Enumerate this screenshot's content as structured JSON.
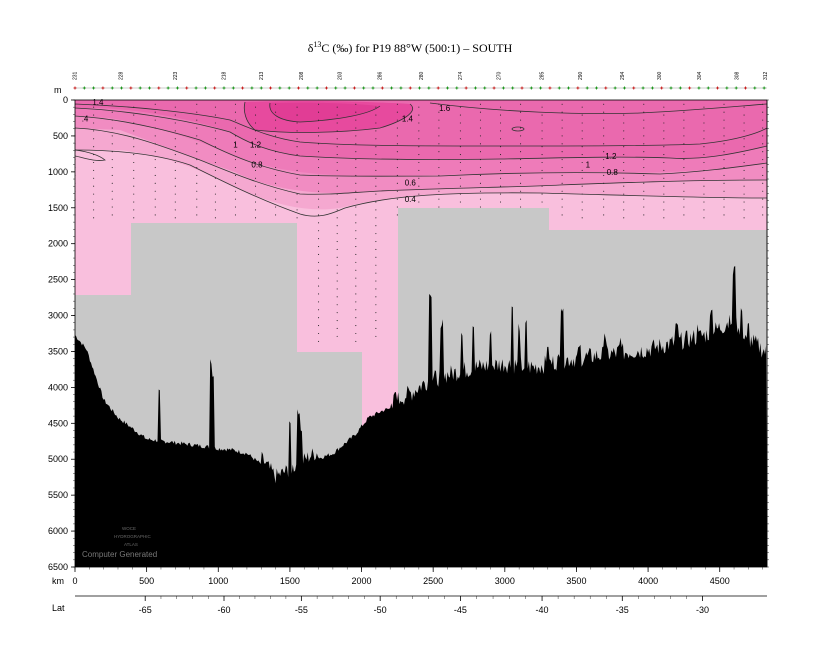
{
  "chart_data": {
    "type": "contour-section",
    "title_parts": {
      "pre": "δ",
      "sup": "13",
      "post": "C (‰) for P19 88°W (500:1) – SOUTH"
    },
    "y_unit_label": "m",
    "x_unit_label": "km",
    "lat_label": "Lat",
    "watermark": {
      "line1": "WOCE",
      "line2": "HYDROGRAPHIC",
      "line3": "ATLAS",
      "line4": "Computer Generated"
    },
    "depth_ticks": [
      0,
      500,
      1000,
      1500,
      2000,
      2500,
      3000,
      3500,
      4000,
      4500,
      5000,
      5500,
      6000,
      6500
    ],
    "ylim": [
      0,
      6500
    ],
    "km_ticks": [
      0,
      500,
      1000,
      1500,
      2000,
      2500,
      3000,
      3500,
      4000,
      4500
    ],
    "xlim": [
      0,
      4830
    ],
    "lat_ticks": [
      {
        "label": "-65",
        "km": 490
      },
      {
        "label": "-60",
        "km": 1040
      },
      {
        "label": "-55",
        "km": 1580
      },
      {
        "label": "-50",
        "km": 2130
      },
      {
        "label": "-45",
        "km": 2690
      },
      {
        "label": "-40",
        "km": 3260
      },
      {
        "label": "-35",
        "km": 3820
      },
      {
        "label": "-30",
        "km": 4380
      }
    ],
    "station_labels": [
      {
        "label": "231",
        "km": 0
      },
      {
        "label": "228",
        "km": 320
      },
      {
        "label": "223",
        "km": 700
      },
      {
        "label": "218",
        "km": 1040
      },
      {
        "label": "213",
        "km": 1300
      },
      {
        "label": "208",
        "km": 1580
      },
      {
        "label": "203",
        "km": 1850
      },
      {
        "label": "286",
        "km": 2130
      },
      {
        "label": "280",
        "km": 2420
      },
      {
        "label": "274",
        "km": 2690
      },
      {
        "label": "270",
        "km": 2960
      },
      {
        "label": "285",
        "km": 3260
      },
      {
        "label": "290",
        "km": 3530
      },
      {
        "label": "294",
        "km": 3820
      },
      {
        "label": "300",
        "km": 4080
      },
      {
        "label": "304",
        "km": 4360
      },
      {
        "label": "308",
        "km": 4620
      },
      {
        "label": "312",
        "km": 4820
      }
    ],
    "contour_labels": [
      {
        "text": "1.4",
        "km": 160,
        "depth": 30
      },
      {
        "text": ".4",
        "km": 70,
        "depth": 260
      },
      {
        "text": "1.6",
        "km": 2580,
        "depth": 110
      },
      {
        "text": "1.4",
        "km": 2320,
        "depth": 260
      },
      {
        "text": "1",
        "km": 1120,
        "depth": 620
      },
      {
        "text": "1.2",
        "km": 1260,
        "depth": 620
      },
      {
        "text": "0.8",
        "km": 1270,
        "depth": 900
      },
      {
        "text": "1.2",
        "km": 3740,
        "depth": 780
      },
      {
        "text": "1",
        "km": 3580,
        "depth": 900
      },
      {
        "text": "0.8",
        "km": 3750,
        "depth": 1000
      },
      {
        "text": "0.6",
        "km": 2340,
        "depth": 1150
      },
      {
        "text": "0.4",
        "km": 2340,
        "depth": 1380
      }
    ],
    "colors": {
      "below_0_4": "#f9bfdd",
      "band_0_4_0_6": "#f5a8d0",
      "band_0_6_0_8": "#f18cc2",
      "band_0_8_1": "#ee7bb9",
      "band_1_1_2": "#ea69ae",
      "band_above_1_4": "#e74a9e",
      "no_data": "#c8c8c8",
      "topography": "#000000",
      "contour_line": "#333333"
    }
  }
}
